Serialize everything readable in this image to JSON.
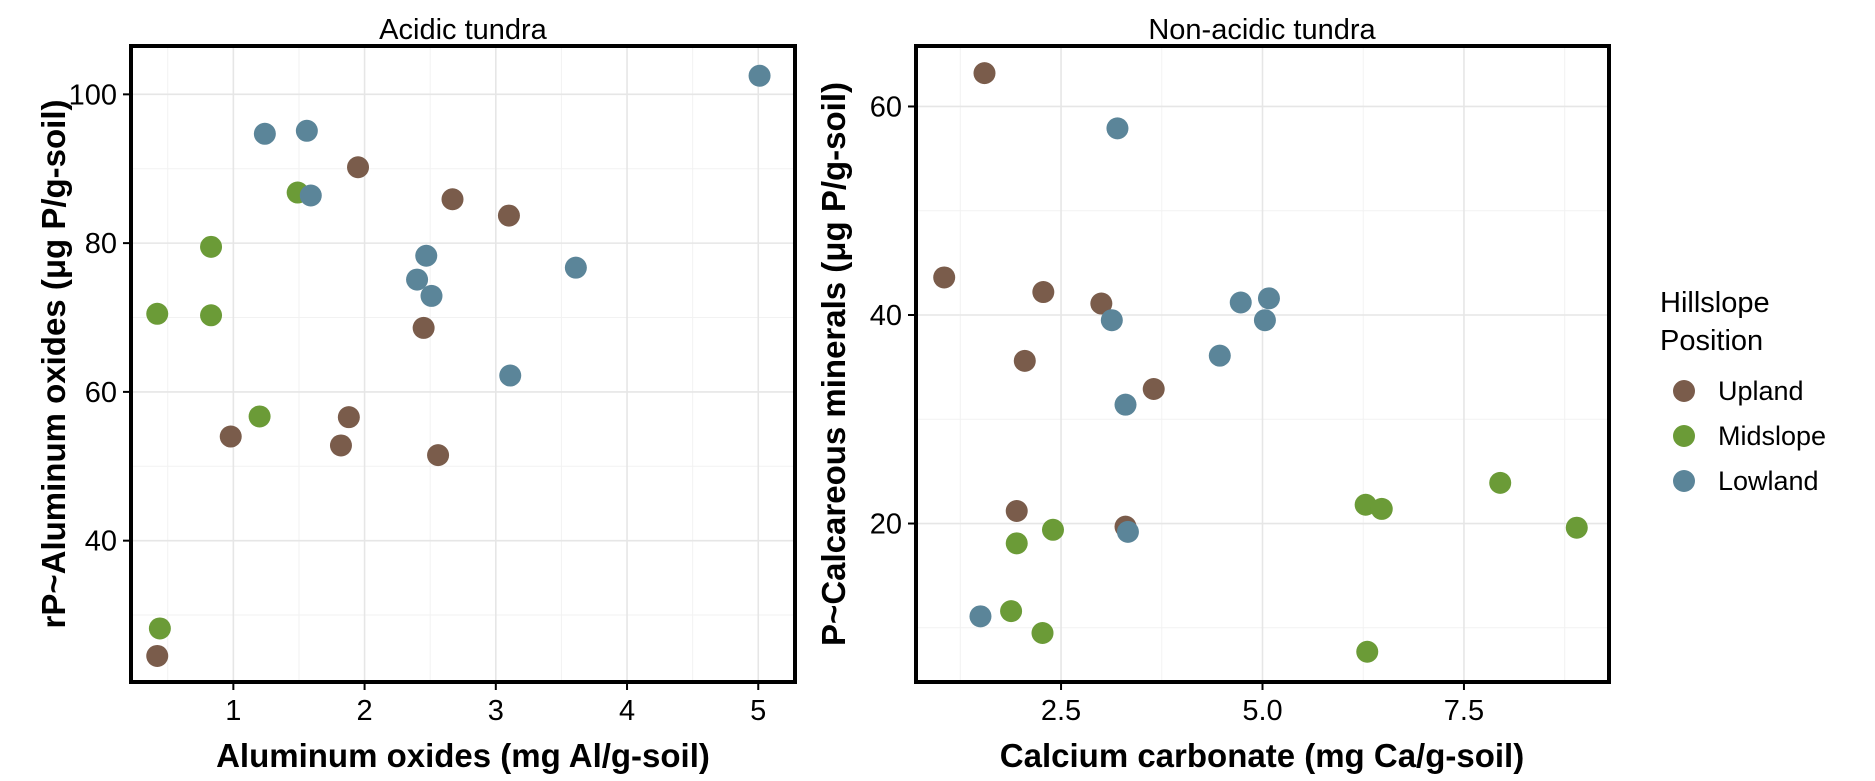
{
  "legend": {
    "title_line1": "Hillslope",
    "title_line2": "Position",
    "items": [
      {
        "label": "Upland",
        "color": "#7a5c4b"
      },
      {
        "label": "Midslope",
        "color": "#6b9b37"
      },
      {
        "label": "Lowland",
        "color": "#5b8599"
      }
    ]
  },
  "chart_data": [
    {
      "type": "scatter",
      "title": "Acidic tundra",
      "xlabel": "Aluminum oxides (mg Al/g-soil)",
      "ylabel": "rP~Aluminum oxides (μg P/g-soil)",
      "xlim": [
        0.22,
        5.28
      ],
      "ylim": [
        21,
        106.5
      ],
      "xticks": [
        1,
        2,
        3,
        4,
        5
      ],
      "yticks": [
        40,
        60,
        80,
        100
      ],
      "grid": true,
      "series": [
        {
          "name": "Upland",
          "color": "#7a5c4b",
          "points": [
            {
              "x": 0.42,
              "y": 24.5
            },
            {
              "x": 0.98,
              "y": 54
            },
            {
              "x": 1.82,
              "y": 52.8
            },
            {
              "x": 1.88,
              "y": 56.6
            },
            {
              "x": 1.95,
              "y": 90.2
            },
            {
              "x": 2.45,
              "y": 68.6
            },
            {
              "x": 2.56,
              "y": 51.5
            },
            {
              "x": 2.67,
              "y": 85.9
            },
            {
              "x": 3.1,
              "y": 83.7
            }
          ]
        },
        {
          "name": "Midslope",
          "color": "#6b9b37",
          "points": [
            {
              "x": 0.42,
              "y": 70.5
            },
            {
              "x": 0.44,
              "y": 28.2
            },
            {
              "x": 0.83,
              "y": 79.5
            },
            {
              "x": 0.83,
              "y": 70.3
            },
            {
              "x": 1.2,
              "y": 56.7
            },
            {
              "x": 1.49,
              "y": 86.8
            }
          ]
        },
        {
          "name": "Lowland",
          "color": "#5b8599",
          "points": [
            {
              "x": 1.24,
              "y": 94.7
            },
            {
              "x": 1.56,
              "y": 95.1
            },
            {
              "x": 1.59,
              "y": 86.4
            },
            {
              "x": 2.4,
              "y": 75.1
            },
            {
              "x": 2.47,
              "y": 78.3
            },
            {
              "x": 2.51,
              "y": 72.9
            },
            {
              "x": 3.11,
              "y": 62.2
            },
            {
              "x": 3.61,
              "y": 76.7
            },
            {
              "x": 5.01,
              "y": 102.5
            }
          ]
        }
      ]
    },
    {
      "type": "scatter",
      "title": "Non-acidic tundra",
      "xlabel": "Calcium carbonate (mg Ca/g-soil)",
      "ylabel": "P~Calcareous minerals (μg P/g-soil)",
      "xlim": [
        0.7,
        9.3
      ],
      "ylim": [
        4.8,
        65.8
      ],
      "xticks": [
        2.5,
        5.0,
        7.5
      ],
      "xtick_labels": [
        "2.5",
        "5.0",
        "7.5"
      ],
      "yticks": [
        20,
        40,
        60
      ],
      "grid": true,
      "series": [
        {
          "name": "Upland",
          "color": "#7a5c4b",
          "points": [
            {
              "x": 1.05,
              "y": 43.6
            },
            {
              "x": 1.55,
              "y": 63.2
            },
            {
              "x": 1.95,
              "y": 21.2
            },
            {
              "x": 2.05,
              "y": 35.6
            },
            {
              "x": 2.28,
              "y": 42.2
            },
            {
              "x": 3.0,
              "y": 41.1
            },
            {
              "x": 3.3,
              "y": 19.7
            },
            {
              "x": 3.65,
              "y": 32.9
            }
          ]
        },
        {
          "name": "Midslope",
          "color": "#6b9b37",
          "points": [
            {
              "x": 1.88,
              "y": 11.6
            },
            {
              "x": 1.95,
              "y": 18.1
            },
            {
              "x": 2.27,
              "y": 9.5
            },
            {
              "x": 2.4,
              "y": 19.4
            },
            {
              "x": 6.28,
              "y": 21.8
            },
            {
              "x": 6.3,
              "y": 7.7
            },
            {
              "x": 6.48,
              "y": 21.4
            },
            {
              "x": 7.95,
              "y": 23.9
            },
            {
              "x": 8.9,
              "y": 19.6
            }
          ]
        },
        {
          "name": "Lowland",
          "color": "#5b8599",
          "points": [
            {
              "x": 1.5,
              "y": 11.1
            },
            {
              "x": 3.13,
              "y": 39.5
            },
            {
              "x": 3.2,
              "y": 57.9
            },
            {
              "x": 3.3,
              "y": 31.4
            },
            {
              "x": 3.33,
              "y": 19.2
            },
            {
              "x": 4.47,
              "y": 36.1
            },
            {
              "x": 4.73,
              "y": 41.2
            },
            {
              "x": 5.03,
              "y": 39.5
            },
            {
              "x": 5.08,
              "y": 41.6
            }
          ]
        }
      ]
    }
  ]
}
